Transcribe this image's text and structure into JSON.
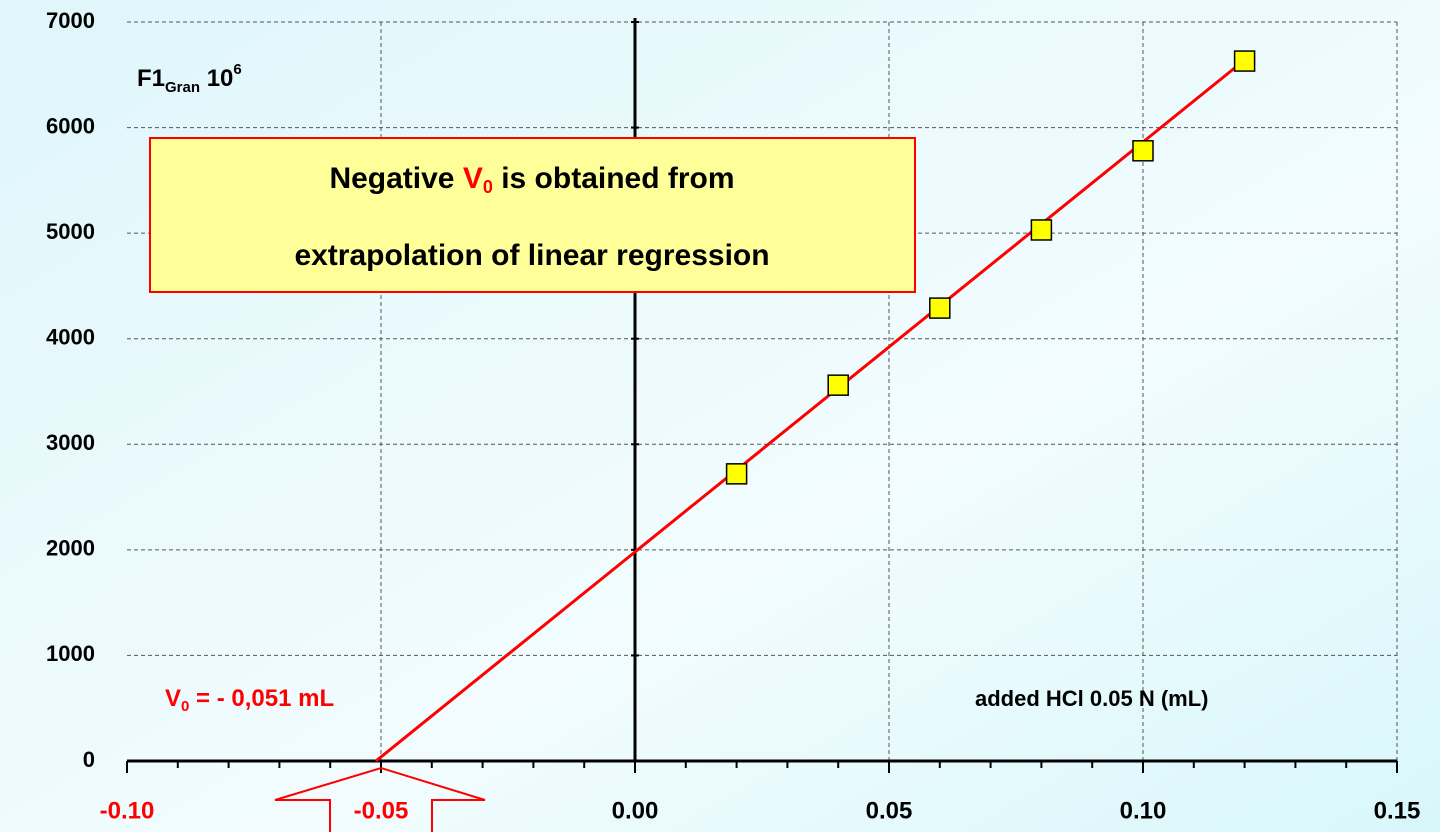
{
  "chart_data": {
    "type": "scatter",
    "y_label": {
      "main": "F1",
      "sub": "Gran",
      "base": " 10",
      "sup": "6"
    },
    "x_label": "added HCl 0.05 N (mL)",
    "annotation": {
      "line1_a": "Negative ",
      "symbol": "V",
      "symbol_sub": "0",
      "line1_b": " is obtained from",
      "line2": "extrapolation of linear regression"
    },
    "v0_label": {
      "symbol": "V",
      "sub": "0",
      "text": " = - 0,051 mL"
    },
    "points": {
      "x": [
        0.02,
        0.04,
        0.06,
        0.08,
        0.1,
        0.12
      ],
      "y": [
        2720,
        3560,
        4290,
        5030,
        5780,
        6630
      ],
      "color": "#ffff00"
    },
    "fit": {
      "x": [
        -0.051,
        0.12
      ],
      "y": [
        0,
        6640
      ],
      "color": "#ff0000"
    },
    "xlim": [
      -0.1,
      0.15
    ],
    "ylim": [
      0,
      7000
    ],
    "xticks": [
      {
        "value": -0.1,
        "label": "-0.10"
      },
      {
        "value": -0.05,
        "label": "-0.05"
      },
      {
        "value": 0,
        "label": "0.00"
      },
      {
        "value": 0.05,
        "label": "0.05"
      },
      {
        "value": 0.1,
        "label": "0.10"
      },
      {
        "value": 0.15,
        "label": "0.15"
      }
    ],
    "xtick_label_colors": [
      "#ff0000",
      "#ff0000",
      "#000000",
      "#000000",
      "#000000",
      "#000000"
    ],
    "xminorticks": [
      -0.09,
      -0.08,
      -0.07,
      -0.06,
      -0.04,
      -0.03,
      -0.02,
      -0.01,
      0.01,
      0.02,
      0.03,
      0.04,
      0.06,
      0.07,
      0.08,
      0.09,
      0.11,
      0.12,
      0.13,
      0.14
    ],
    "yticks": [
      0,
      1000,
      2000,
      3000,
      4000,
      5000,
      6000,
      7000
    ],
    "grid": true
  }
}
